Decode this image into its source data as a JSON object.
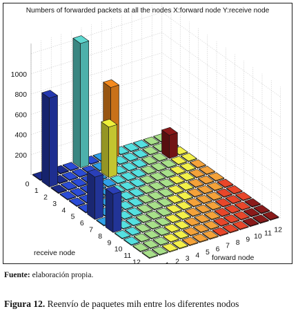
{
  "chart_data": {
    "type": "bar3d",
    "title": "Numbers of forwarded packets at all the nodes X:forward node Y:receive node",
    "xlabel": "forward node",
    "ylabel": "receive node",
    "x_ticks": [
      "0",
      "1",
      "2",
      "3",
      "4",
      "5",
      "6",
      "7",
      "8",
      "9",
      "10",
      "11",
      "12"
    ],
    "y_ticks": [
      "0",
      "1",
      "2",
      "3",
      "4",
      "5",
      "6",
      "7",
      "8",
      "9",
      "10",
      "11",
      "12"
    ],
    "z_ticks": [
      "0",
      "200",
      "400",
      "600",
      "800",
      "1000"
    ],
    "zlim": [
      0,
      1300
    ],
    "grid": true,
    "tall_bars": [
      {
        "forward": 0,
        "receive": 1,
        "value": 880
      },
      {
        "forward": 0,
        "receive": 6,
        "value": 420
      },
      {
        "forward": 0,
        "receive": 8,
        "value": 380
      },
      {
        "forward": 4,
        "receive": 0,
        "value": 1230
      },
      {
        "forward": 5,
        "receive": 2,
        "value": 500
      },
      {
        "forward": 7,
        "receive": 0,
        "value": 700
      },
      {
        "forward": 11,
        "receive": 2,
        "value": 230
      }
    ],
    "baseline_value": 0
  },
  "caption": {
    "source_label": "Fuente:",
    "source_text": " elaboración propia.",
    "figure_label": "Figura 12.",
    "figure_text": " Reenvío de paquetes mih entre los diferentes nodos"
  },
  "colors": {
    "colormap": [
      "#1b2a8c",
      "#2a4bd6",
      "#2fa0e8",
      "#55e0e0",
      "#a8e08a",
      "#f3f04a",
      "#f4a23a",
      "#e8462a",
      "#8a1a1a"
    ]
  }
}
